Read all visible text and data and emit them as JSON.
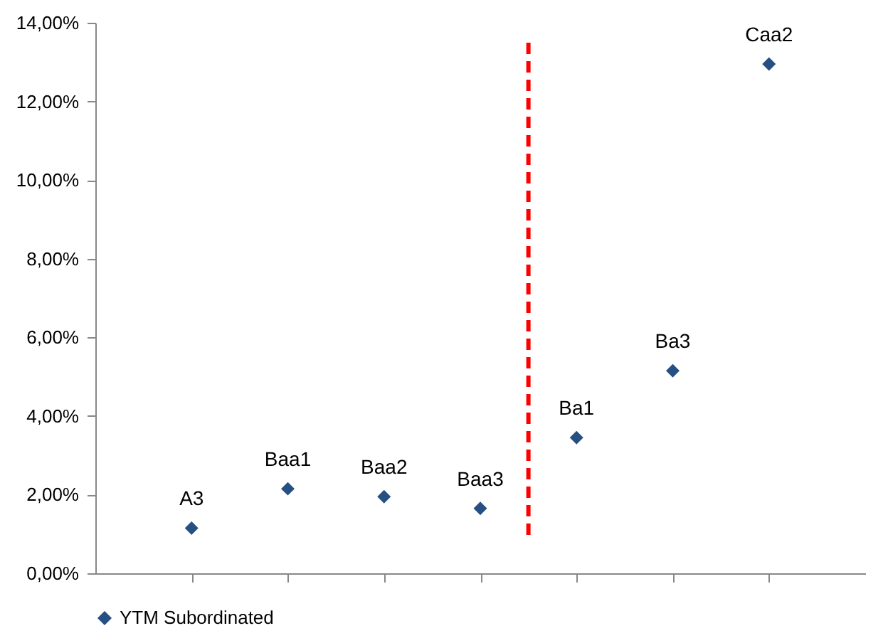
{
  "chart_data": {
    "type": "scatter",
    "marker": "diamond",
    "grid": false,
    "legend": "bottom",
    "tick_labels": "y",
    "categories": [
      null,
      null,
      null,
      null,
      null,
      null,
      null
    ],
    "ylim": [
      0,
      14
    ],
    "yticks": [
      {
        "value": 0,
        "label": "0,00%"
      },
      {
        "value": 2,
        "label": "2,00%"
      },
      {
        "value": 4,
        "label": "4,00%"
      },
      {
        "value": 6,
        "label": "6,00%"
      },
      {
        "value": 8,
        "label": "8,00%"
      },
      {
        "value": 10,
        "label": "10,00%"
      },
      {
        "value": 12,
        "label": "12,00%"
      },
      {
        "value": 14,
        "label": "14,00%"
      }
    ],
    "series": [
      {
        "name": "YTM Subordinated",
        "color": "#264f82",
        "values": [
          1.15,
          2.15,
          1.95,
          1.65,
          3.45,
          5.15,
          12.95
        ]
      }
    ],
    "annotations": [
      "A3",
      "Baa1",
      "Baa2",
      "Baa3",
      "Ba1",
      "Ba3",
      "Caa2"
    ]
  }
}
